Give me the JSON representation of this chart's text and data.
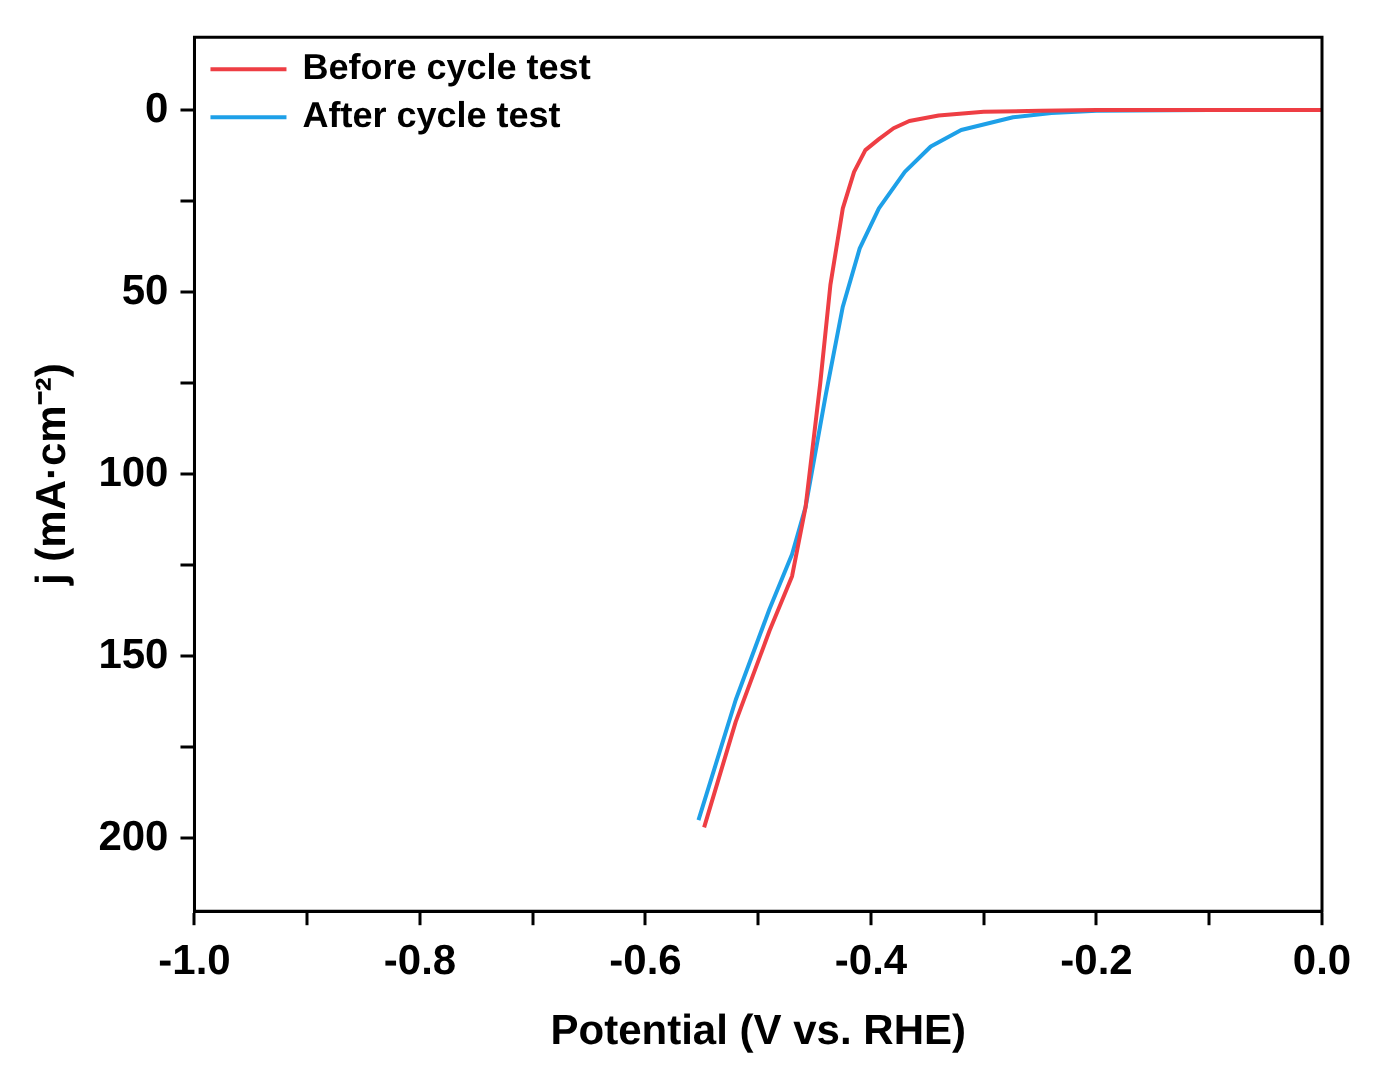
{
  "chart_data": {
    "type": "line",
    "xlabel": "Potential (V vs. RHE)",
    "ylabel": "j (mA·cm⁻²)",
    "xlim": [
      -1.0,
      0.0
    ],
    "xticks": [
      {
        "value": -1,
        "label": "-1.0"
      },
      {
        "value": -0.9,
        "label": null
      },
      {
        "value": -0.8,
        "label": "-0.8"
      },
      {
        "value": -0.7,
        "label": null
      },
      {
        "value": -0.6,
        "label": "-0.6"
      },
      {
        "value": -0.5,
        "label": null
      },
      {
        "value": -0.4,
        "label": "-0.4"
      },
      {
        "value": -0.3,
        "label": null
      },
      {
        "value": -0.2,
        "label": "-0.2"
      },
      {
        "value": -0.1,
        "label": null
      },
      {
        "value": 0,
        "label": "0.0"
      }
    ],
    "ylim": [
      220,
      -20
    ],
    "yticks": [
      0,
      {
        "value": 25,
        "label": null
      },
      50,
      {
        "value": 75,
        "label": null
      },
      100,
      {
        "value": 125,
        "label": null
      },
      150,
      {
        "value": 175,
        "label": null
      },
      200
    ],
    "grid": false,
    "legend": "top left",
    "marker": "none",
    "line_style": "solid",
    "series": [
      {
        "name": "Before cycle test",
        "color": "#ee3e44",
        "x": [
          -0.548,
          -0.52,
          -0.49,
          -0.47,
          -0.458,
          -0.445,
          -0.436,
          -0.425,
          -0.415,
          -0.405,
          -0.393,
          -0.38,
          -0.366,
          -0.34,
          -0.3,
          -0.25,
          -0.2,
          -0.1,
          0
        ],
        "values": [
          197,
          168,
          143,
          128,
          109,
          75,
          48,
          27,
          17,
          11,
          8,
          5,
          3,
          1.5,
          0.5,
          0.2,
          0,
          0,
          0
        ]
      },
      {
        "name": "After cycle test",
        "color": "#1ea0e8",
        "x": [
          -0.553,
          -0.52,
          -0.49,
          -0.47,
          -0.458,
          -0.44,
          -0.425,
          -0.41,
          -0.393,
          -0.37,
          -0.347,
          -0.32,
          -0.274,
          -0.24,
          -0.2,
          -0.1,
          0
        ],
        "values": [
          195,
          162,
          137,
          122,
          109,
          78,
          54,
          38,
          27,
          17,
          10,
          5.5,
          2,
          0.8,
          0.2,
          0,
          0
        ]
      }
    ]
  }
}
